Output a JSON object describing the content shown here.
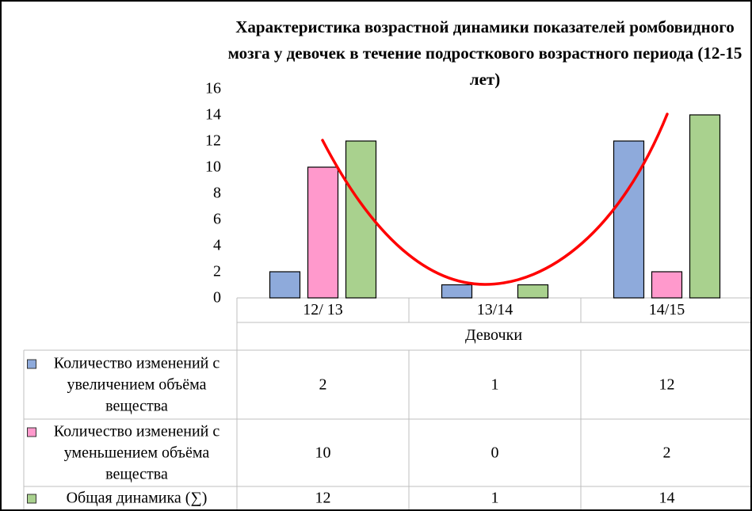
{
  "chart_data": {
    "type": "bar",
    "title": "Характеристика  возрастной динамики показателей ромбовидного мозга у девочек в течение подросткового возрастного периода (12-15 лет)",
    "x_label": "Девочки",
    "categories": [
      "12/ 13",
      "13/14",
      "14/15"
    ],
    "series": [
      {
        "name": "Количество изменений с увеличением объёма вещества",
        "color": "#8eaadb",
        "values": [
          2,
          1,
          12
        ]
      },
      {
        "name": "Количество изменений с уменьшением объёма вещества",
        "color": "#ff99cc",
        "values": [
          10,
          0,
          2
        ]
      },
      {
        "name": "Общая динамика (∑)",
        "color": "#a9d18e",
        "values": [
          12,
          1,
          14
        ]
      }
    ],
    "ylim": [
      0,
      16
    ],
    "yticks": [
      0,
      2,
      4,
      6,
      8,
      10,
      12,
      14,
      16
    ],
    "grid": false
  }
}
